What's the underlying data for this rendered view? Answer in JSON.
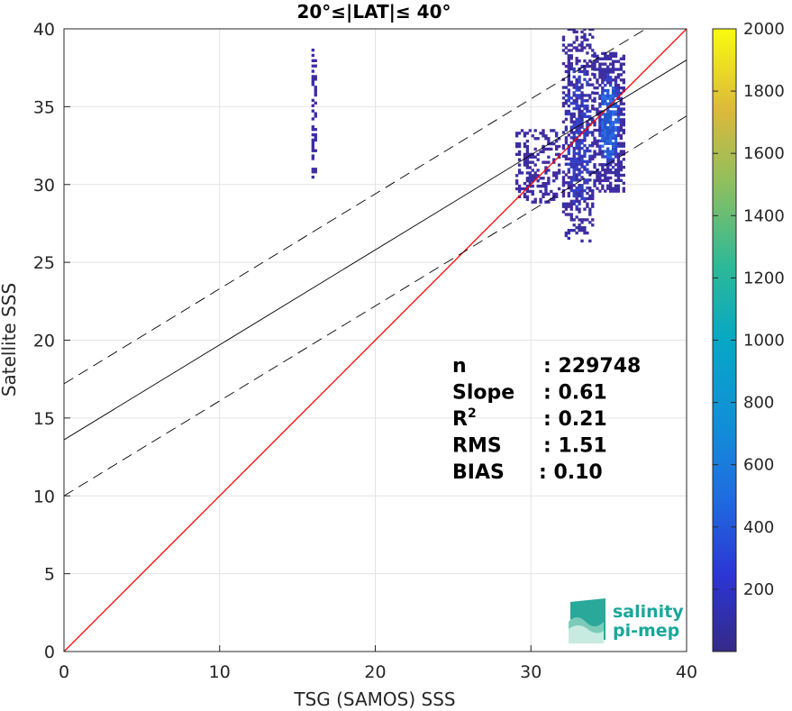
{
  "chart_data": {
    "type": "scatter",
    "title": "20°≤|LAT|≤ 40°",
    "xlabel": "TSG (SAMOS) SSS",
    "ylabel": "Satellite SSS",
    "xlim": [
      0,
      40
    ],
    "ylim": [
      0,
      40
    ],
    "xticks": [
      "0",
      "10",
      "20",
      "30",
      "40"
    ],
    "yticks": [
      "0",
      "5",
      "10",
      "15",
      "20",
      "25",
      "30",
      "35",
      "40"
    ],
    "grid": true,
    "lines": [
      {
        "name": "identity",
        "slope": 1.0,
        "intercept": 0.0,
        "color": "#ff0000",
        "style": "solid"
      },
      {
        "name": "regression",
        "slope": 0.61,
        "intercept": 13.6,
        "color": "#000000",
        "style": "solid"
      },
      {
        "name": "regression-plus",
        "slope": 0.61,
        "intercept": 17.2,
        "color": "#000000",
        "style": "dashed"
      },
      {
        "name": "regression-minus",
        "slope": 0.61,
        "intercept": 10.0,
        "color": "#000000",
        "style": "dashed"
      }
    ],
    "density_clusters": [
      {
        "x_range": [
          15.9,
          16.2
        ],
        "y_range": [
          30.4,
          38.7
        ],
        "density": "low"
      },
      {
        "x_range": [
          32.0,
          34.0
        ],
        "y_range": [
          26.3,
          40.0
        ],
        "density": "medium"
      },
      {
        "x_range": [
          34.0,
          35.9
        ],
        "y_range": [
          29.5,
          38.5
        ],
        "density": "high"
      },
      {
        "x_range": [
          29.0,
          31.8
        ],
        "y_range": [
          28.8,
          33.5
        ],
        "density": "low"
      }
    ],
    "colorbar": {
      "min": 0,
      "max": 2000,
      "ticks": [
        "200",
        "400",
        "600",
        "800",
        "1000",
        "1200",
        "1400",
        "1600",
        "1800",
        "2000"
      ],
      "colormap": "parula"
    },
    "stats": [
      {
        "label": "n",
        "value": ": 229748"
      },
      {
        "label": "Slope",
        "value": ": 0.61"
      },
      {
        "label": "R",
        "sup": "2",
        "value": ": 0.21"
      },
      {
        "label": "RMS",
        "value": ": 1.51"
      },
      {
        "label": "BIAS",
        "value": ": 0.10"
      }
    ]
  },
  "logo": {
    "line1": "salinity",
    "line2": "pi-mep"
  }
}
